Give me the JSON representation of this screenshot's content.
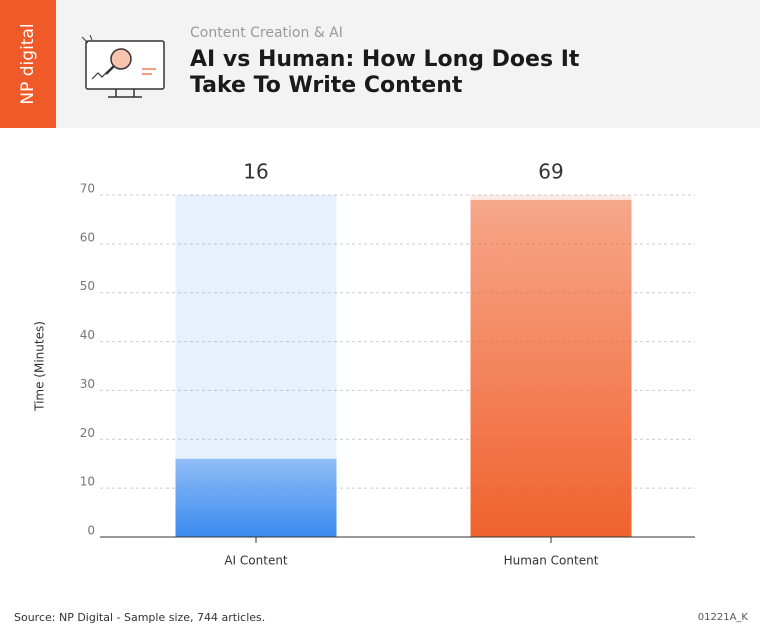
{
  "logo": "NP digital",
  "source": "Source: NP Digital - Sample size, 744 articles.",
  "code": "01221A_K",
  "chart_data": {
    "type": "bar",
    "subtitle": "Content Creation & AI",
    "title": "AI vs Human: How Long Does It Take To Write Content",
    "y_label": "Time (Minutes)",
    "categories": [
      "AI Content",
      "Human Content"
    ],
    "values": [
      16,
      69
    ],
    "colors": [
      "#3a8aef",
      "#f0622e"
    ],
    "ylim": [
      0,
      70
    ],
    "yticks": [
      0,
      10,
      20,
      30,
      40,
      50,
      60,
      70
    ],
    "grid": true
  }
}
